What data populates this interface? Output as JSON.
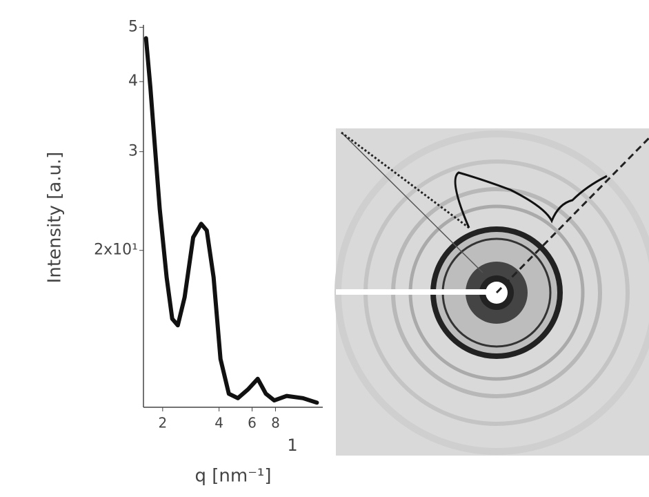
{
  "chart_data": {
    "type": "line",
    "x_label": "q [nm⁻¹]",
    "y_label": "Intensity [a.u.]",
    "annotation": "1",
    "x_scale": "log",
    "y_scale": "log",
    "xlim": [
      1.58,
      14.3
    ],
    "ylim": [
      10.5,
      50.5
    ],
    "xticks": [
      2,
      4,
      6,
      8
    ],
    "yticks": [
      {
        "value": 50,
        "label": "5"
      },
      {
        "value": 40,
        "label": "4"
      },
      {
        "value": 30,
        "label": "3"
      },
      {
        "value": 20,
        "label": "2x10¹"
      }
    ],
    "color": "#111111",
    "x": [
      1.63,
      1.72,
      1.81,
      1.93,
      2.1,
      2.25,
      2.41,
      2.62,
      2.91,
      3.21,
      3.44,
      3.74,
      4.07,
      4.51,
      5.04,
      5.71,
      6.43,
      7.11,
      7.88,
      9.18,
      11.2,
      13.3
    ],
    "values": [
      47.8,
      39.1,
      31.3,
      23.7,
      17.9,
      15.1,
      14.7,
      16.5,
      21.1,
      22.3,
      21.7,
      17.9,
      12.8,
      11.1,
      10.9,
      11.3,
      11.8,
      11.1,
      10.8,
      11.0,
      10.9,
      10.7
    ]
  }
}
